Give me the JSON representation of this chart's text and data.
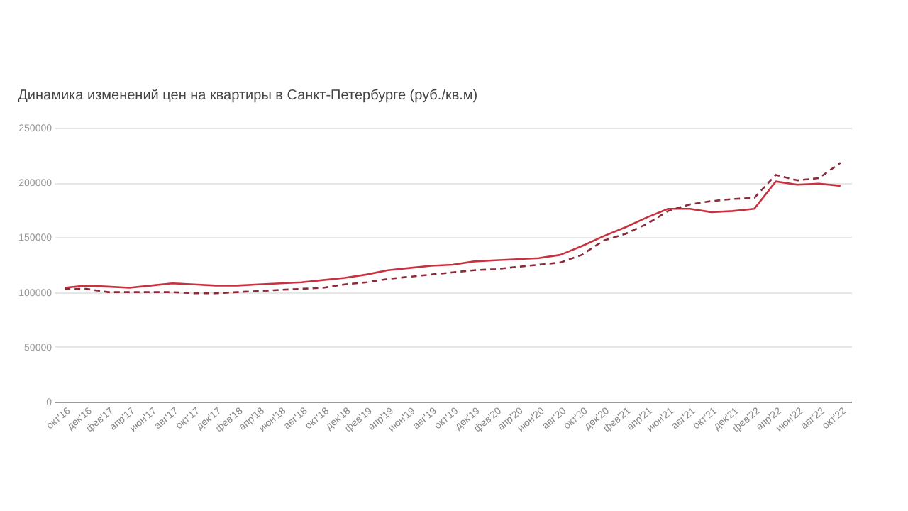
{
  "chart_data": {
    "type": "line",
    "title": "Динамика изменений цен на квартиры в Санкт-Петербурге (руб./кв.м)",
    "categories": [
      "окт'16",
      "дек'16",
      "фев'17",
      "апр'17",
      "июн'17",
      "авг'17",
      "окт'17",
      "дек'17",
      "фев'18",
      "апр'18",
      "июн'18",
      "авг'18",
      "окт'18",
      "дек'18",
      "фев'19",
      "апр'19",
      "июн'19",
      "авг'19",
      "окт'19",
      "дек'19",
      "фев'20",
      "апр'20",
      "июн'20",
      "авг'20",
      "окт'20",
      "дек'20",
      "фев'21",
      "апр'21",
      "июн'21",
      "авг'21",
      "окт'21",
      "дек'21",
      "фев'22",
      "апр'22",
      "июн'22",
      "авг'22",
      "окт'22"
    ],
    "series": [
      {
        "color": "#c8313e",
        "line_style": "solid",
        "values": [
          104000,
          106000,
          105000,
          104000,
          106000,
          108000,
          107000,
          106000,
          106000,
          107000,
          108000,
          109000,
          111000,
          113000,
          116000,
          120000,
          122000,
          124000,
          125000,
          128000,
          129000,
          130000,
          131000,
          134000,
          142000,
          151000,
          159000,
          168000,
          176000,
          176000,
          173000,
          174000,
          176000,
          201000,
          198000,
          199000,
          197000
        ]
      },
      {
        "color": "#8b2a3a",
        "line_style": "dashed",
        "values": [
          103000,
          103000,
          100000,
          100000,
          100000,
          100000,
          99000,
          99000,
          100000,
          101000,
          102000,
          103000,
          104000,
          107000,
          109000,
          112000,
          114000,
          116000,
          118000,
          120000,
          121000,
          123000,
          125000,
          127000,
          134000,
          147000,
          153000,
          162000,
          174000,
          180000,
          183000,
          185000,
          186000,
          207000,
          202000,
          204000,
          218000
        ]
      }
    ],
    "ylim": [
      0,
      250000
    ],
    "yticks": [
      0,
      50000,
      100000,
      150000,
      200000,
      250000
    ],
    "grid": "y"
  }
}
